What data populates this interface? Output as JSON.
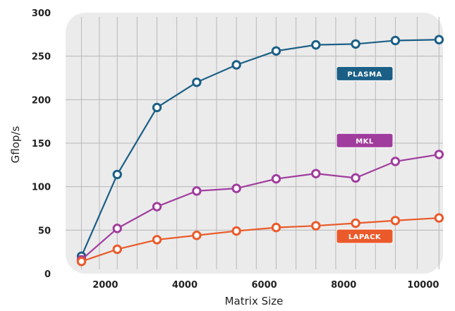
{
  "chart_data": {
    "type": "line",
    "title": "",
    "xlabel": "Matrix Size",
    "ylabel": "Gflop/s",
    "xlim": [
      1000,
      10500
    ],
    "ylim": [
      0,
      300
    ],
    "xticks": [
      2000,
      4000,
      6000,
      8000,
      10000
    ],
    "yticks": [
      0,
      50,
      100,
      150,
      200,
      250,
      300
    ],
    "x": [
      1400,
      2300,
      3300,
      4300,
      5300,
      6300,
      7300,
      8300,
      9300,
      10400
    ],
    "grid": true,
    "legend": "labels placed next to each series",
    "series": [
      {
        "name": "PLASMA",
        "color": "#1b5f86",
        "values": [
          20,
          114,
          191,
          220,
          240,
          256,
          263,
          264,
          268,
          269
        ]
      },
      {
        "name": "MKL",
        "color": "#a03c9e",
        "values": [
          16,
          52,
          77,
          95,
          98,
          109,
          115,
          110,
          129,
          137
        ]
      },
      {
        "name": "LAPACK",
        "color": "#ea5a2a",
        "values": [
          14,
          28,
          39,
          44,
          49,
          53,
          55,
          58,
          61,
          64
        ]
      }
    ]
  }
}
